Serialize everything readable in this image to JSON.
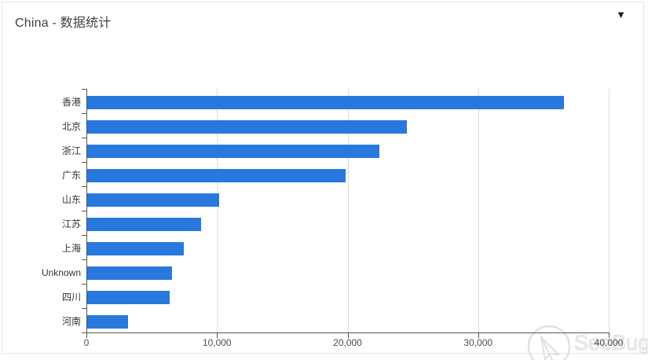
{
  "header": {
    "title": "China - 数据统计",
    "caret_glyph": "▼"
  },
  "chart_data": {
    "type": "bar",
    "orientation": "horizontal",
    "title": "China - 数据统计",
    "categories": [
      "香港",
      "北京",
      "浙江",
      "广东",
      "山东",
      "江苏",
      "上海",
      "Unknown",
      "四川",
      "河南"
    ],
    "values": [
      36500,
      24500,
      22400,
      19800,
      10100,
      8700,
      7400,
      6500,
      6300,
      3100
    ],
    "xlabel": "",
    "ylabel": "",
    "xlim": [
      0,
      40000
    ],
    "x_tick_values": [
      0,
      10000,
      20000,
      30000,
      40000
    ],
    "x_tick_labels": [
      "0",
      "10,000",
      "20,000",
      "30,000",
      "40,000"
    ],
    "grid": true,
    "legend": "none",
    "bar_color": "#2878dd"
  },
  "watermark": {
    "label": "SeeBug",
    "icon": "seebug-logo"
  },
  "colors": {
    "bar": "#2878dd",
    "axis": "#555555",
    "grid": "#dcdcdc",
    "panel_border": "#e5e5e5",
    "title_text": "#404040",
    "axis_text": "#4d4d4d",
    "category_text": "#333333",
    "watermark": "#e3e3e3"
  }
}
